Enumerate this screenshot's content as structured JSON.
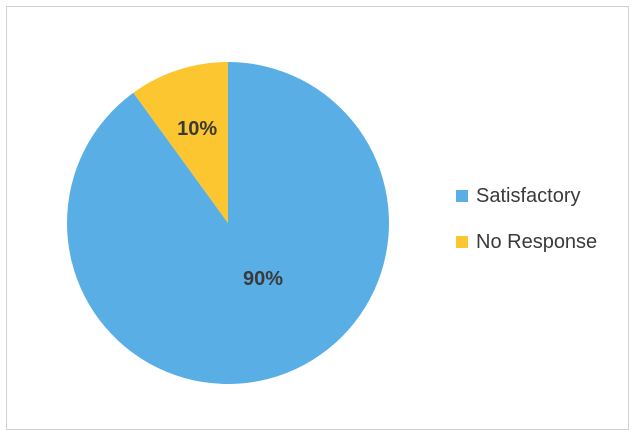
{
  "chart_data": {
    "type": "pie",
    "slices": [
      {
        "label": "Satisfactory",
        "value": 90,
        "display": "90%",
        "color": "#5aaee6"
      },
      {
        "label": "No Response",
        "value": 10,
        "display": "10%",
        "color": "#fbc62f"
      }
    ],
    "legend_position": "right",
    "start": "12 o'clock",
    "direction": "clockwise"
  }
}
